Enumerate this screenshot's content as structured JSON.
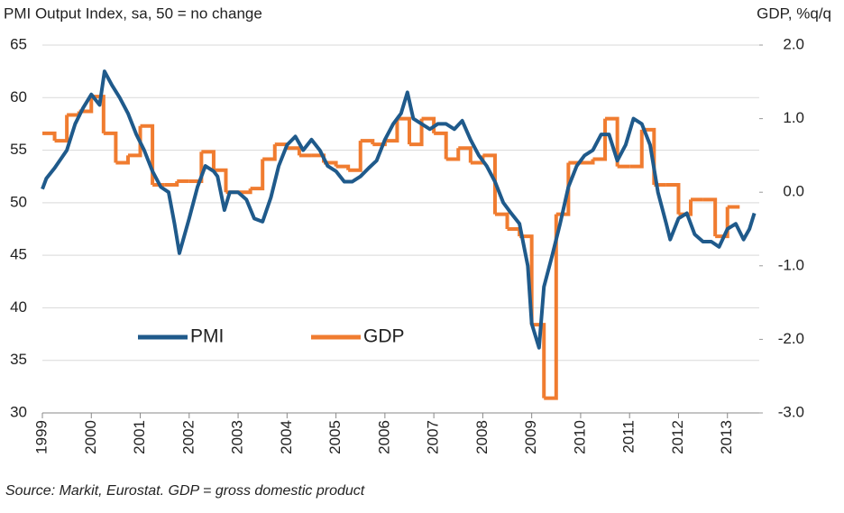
{
  "chart_data": {
    "type": "line",
    "title": "PMI Output  Index, sa, 50 = no change",
    "y2_label": "GDP, %q/q",
    "source": "Source: Markit, Eurostat. GDP = gross domestic product",
    "xlim": [
      1999,
      2013.65
    ],
    "xticks": [
      1999,
      2000,
      2001,
      2002,
      2003,
      2004,
      2005,
      2006,
      2007,
      2008,
      2009,
      2010,
      2011,
      2012,
      2013
    ],
    "ylim": [
      30,
      65
    ],
    "yticks": [
      30,
      35,
      40,
      45,
      50,
      55,
      60,
      65
    ],
    "y2lim": [
      -3,
      2
    ],
    "y2ticks": [
      {
        "value": -3,
        "label": "-3.0"
      },
      {
        "value": -2,
        "label": "-2.0"
      },
      {
        "value": -1,
        "label": "-1.0"
      },
      {
        "value": 0,
        "label": "0.0"
      },
      {
        "value": 1,
        "label": "1.0"
      },
      {
        "value": 2,
        "label": "2.0"
      }
    ],
    "grid": true,
    "series": [
      {
        "name": "PMI",
        "color": "#1f5a8b",
        "x": [
          1999.0,
          1999.08,
          1999.25,
          1999.5,
          1999.67,
          1999.83,
          2000.0,
          2000.17,
          2000.27,
          2000.42,
          2000.58,
          2000.75,
          2000.92,
          2001.08,
          2001.25,
          2001.42,
          2001.58,
          2001.7,
          2001.8,
          2002.0,
          2002.17,
          2002.33,
          2002.5,
          2002.58,
          2002.72,
          2002.83,
          2003.0,
          2003.17,
          2003.33,
          2003.5,
          2003.67,
          2003.83,
          2004.0,
          2004.17,
          2004.33,
          2004.5,
          2004.67,
          2004.83,
          2005.0,
          2005.17,
          2005.33,
          2005.5,
          2005.67,
          2005.83,
          2006.0,
          2006.17,
          2006.33,
          2006.46,
          2006.58,
          2006.75,
          2006.92,
          2007.08,
          2007.25,
          2007.42,
          2007.58,
          2007.75,
          2007.92,
          2008.08,
          2008.25,
          2008.42,
          2008.58,
          2008.75,
          2008.92,
          2009.0,
          2009.15,
          2009.25,
          2009.42,
          2009.58,
          2009.75,
          2009.92,
          2010.08,
          2010.25,
          2010.42,
          2010.58,
          2010.75,
          2010.92,
          2011.08,
          2011.25,
          2011.42,
          2011.58,
          2011.75,
          2011.83,
          2012.0,
          2012.17,
          2012.33,
          2012.5,
          2012.67,
          2012.83,
          2013.0,
          2013.17,
          2013.33,
          2013.45,
          2013.55
        ],
        "values": [
          51.3,
          52.3,
          53.3,
          55.0,
          57.5,
          59.0,
          60.3,
          59.3,
          62.5,
          61.2,
          60.0,
          58.5,
          56.5,
          55.0,
          53.0,
          51.5,
          51.0,
          48.0,
          45.2,
          48.5,
          51.5,
          53.5,
          53.0,
          52.5,
          49.3,
          51.0,
          51.0,
          50.3,
          48.5,
          48.2,
          50.5,
          53.5,
          55.5,
          56.3,
          55.0,
          56.0,
          55.0,
          53.5,
          53.0,
          52.0,
          52.0,
          52.5,
          53.3,
          54.0,
          56.0,
          57.5,
          58.5,
          60.5,
          58.0,
          57.5,
          57.0,
          57.5,
          57.5,
          57.0,
          57.8,
          56.0,
          54.5,
          53.5,
          52.0,
          50.0,
          49.0,
          48.0,
          44.0,
          38.5,
          36.2,
          42.0,
          45.0,
          48.0,
          51.5,
          53.5,
          54.5,
          55.0,
          56.5,
          56.5,
          54.0,
          55.5,
          58.0,
          57.5,
          55.5,
          51.0,
          48.0,
          46.5,
          48.5,
          49.0,
          47.0,
          46.3,
          46.3,
          45.8,
          47.5,
          48.0,
          46.5,
          47.5,
          49.0
        ]
      },
      {
        "name": "GDP",
        "color": "#f07c30",
        "axis": "y2",
        "step": true,
        "x": [
          1999.0,
          1999.25,
          1999.5,
          1999.75,
          2000.0,
          2000.25,
          2000.5,
          2000.75,
          2001.0,
          2001.25,
          2001.5,
          2001.75,
          2002.0,
          2002.25,
          2002.5,
          2002.75,
          2003.0,
          2003.25,
          2003.5,
          2003.75,
          2004.0,
          2004.25,
          2004.5,
          2004.75,
          2005.0,
          2005.25,
          2005.5,
          2005.75,
          2006.0,
          2006.25,
          2006.5,
          2006.75,
          2007.0,
          2007.25,
          2007.5,
          2007.75,
          2008.0,
          2008.25,
          2008.5,
          2008.75,
          2009.0,
          2009.25,
          2009.5,
          2009.75,
          2010.0,
          2010.25,
          2010.5,
          2010.75,
          2011.0,
          2011.25,
          2011.5,
          2011.75,
          2012.0,
          2012.25,
          2012.5,
          2012.75,
          2013.0
        ],
        "values": [
          0.8,
          0.7,
          1.05,
          1.1,
          1.3,
          0.8,
          0.4,
          0.5,
          0.9,
          0.1,
          0.1,
          0.15,
          0.15,
          0.55,
          0.3,
          0.0,
          0.0,
          0.05,
          0.45,
          0.65,
          0.6,
          0.5,
          0.5,
          0.4,
          0.35,
          0.3,
          0.7,
          0.65,
          0.7,
          1.0,
          0.65,
          1.0,
          0.8,
          0.45,
          0.6,
          0.4,
          0.5,
          -0.3,
          -0.5,
          -0.6,
          -1.8,
          -2.8,
          -0.3,
          0.4,
          0.4,
          0.45,
          1.0,
          0.35,
          0.35,
          0.85,
          0.1,
          0.1,
          -0.3,
          -0.1,
          -0.1,
          -0.6,
          -0.2
        ]
      }
    ]
  }
}
